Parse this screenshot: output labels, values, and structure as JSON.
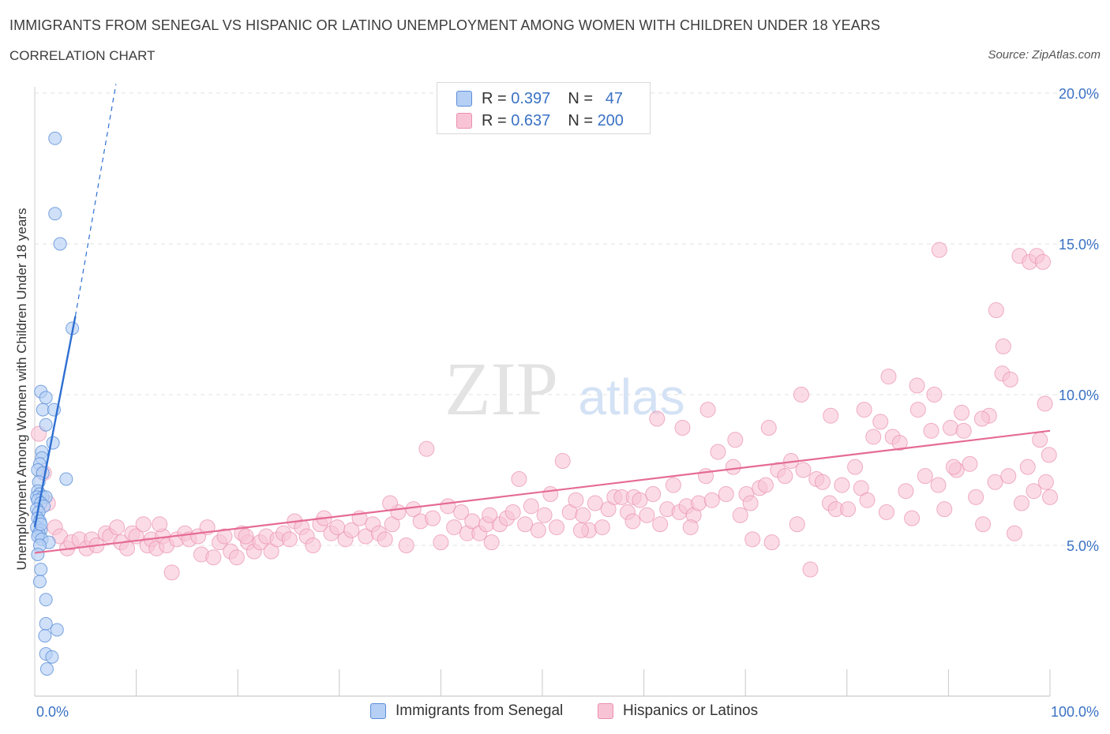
{
  "header": {
    "title": "IMMIGRANTS FROM SENEGAL VS HISPANIC OR LATINO UNEMPLOYMENT AMONG WOMEN WITH CHILDREN UNDER 18 YEARS",
    "subtitle": "CORRELATION CHART",
    "source": "Source: ZipAtlas.com"
  },
  "watermark": {
    "zip": "ZIP",
    "atlas": "atlas"
  },
  "legend": {
    "r_label": "R =",
    "n_label": "N =",
    "series": [
      {
        "name": "Immigrants from Senegal",
        "r": "0.397",
        "n": "47"
      },
      {
        "name": "Hispanics or Latinos",
        "r": "0.637",
        "n": "200"
      }
    ]
  },
  "colors": {
    "senegal_fill": "#b5cff5",
    "senegal_stroke": "#5b8ed8",
    "senegal_line": "#2e6fd1",
    "hispanic_fill": "#f8c4d5",
    "hispanic_stroke": "#ea8fae",
    "hispanic_line": "#e56b96",
    "axis_label": "#3a72c4"
  },
  "chart_data": {
    "type": "scatter",
    "title": "IMMIGRANTS FROM SENEGAL VS HISPANIC OR LATINO UNEMPLOYMENT AMONG WOMEN WITH CHILDREN UNDER 18 YEARS",
    "ylabel": "Unemployment Among Women with Children Under 18 years",
    "xlabel": "",
    "xlim": [
      0,
      100
    ],
    "ylim": [
      0,
      20.5
    ],
    "x_tick_labels": [
      "0.0%",
      "100.0%"
    ],
    "y_ticks": [
      5,
      10,
      15,
      20
    ],
    "y_tick_labels": [
      "5.0%",
      "10.0%",
      "15.0%",
      "20.0%"
    ],
    "grid": "horizontal dashed",
    "legend_position": "top-center",
    "series": [
      {
        "name": "Immigrants from Senegal",
        "r": 0.397,
        "n": 47,
        "trend": {
          "x": [
            0.0,
            4.0
          ],
          "y": [
            5.6,
            12.6
          ],
          "dashed_extension_to": [
            8.0,
            20.3
          ]
        },
        "points": [
          [
            2.0,
            18.5
          ],
          [
            2.0,
            16.0
          ],
          [
            2.5,
            15.0
          ],
          [
            3.7,
            12.2
          ],
          [
            0.6,
            10.1
          ],
          [
            1.1,
            9.9
          ],
          [
            0.8,
            9.5
          ],
          [
            1.9,
            9.5
          ],
          [
            1.1,
            9.0
          ],
          [
            1.8,
            8.4
          ],
          [
            0.7,
            8.1
          ],
          [
            0.7,
            7.9
          ],
          [
            0.5,
            7.7
          ],
          [
            0.3,
            7.5
          ],
          [
            0.8,
            7.4
          ],
          [
            3.1,
            7.2
          ],
          [
            0.4,
            7.1
          ],
          [
            0.3,
            6.8
          ],
          [
            0.5,
            6.7
          ],
          [
            0.2,
            6.6
          ],
          [
            0.8,
            6.6
          ],
          [
            1.1,
            6.6
          ],
          [
            0.3,
            6.5
          ],
          [
            0.6,
            6.4
          ],
          [
            0.9,
            6.3
          ],
          [
            0.2,
            6.2
          ],
          [
            0.4,
            6.1
          ],
          [
            0.3,
            5.9
          ],
          [
            0.5,
            5.8
          ],
          [
            0.2,
            5.6
          ],
          [
            0.6,
            5.5
          ],
          [
            0.4,
            5.4
          ],
          [
            0.3,
            5.3
          ],
          [
            0.7,
            5.2
          ],
          [
            1.4,
            5.1
          ],
          [
            0.5,
            5.0
          ],
          [
            0.3,
            4.7
          ],
          [
            0.6,
            4.2
          ],
          [
            0.5,
            3.8
          ],
          [
            1.1,
            3.2
          ],
          [
            1.1,
            2.4
          ],
          [
            2.2,
            2.2
          ],
          [
            1.0,
            2.0
          ],
          [
            1.1,
            1.4
          ],
          [
            1.7,
            1.3
          ],
          [
            1.2,
            0.9
          ],
          [
            0.6,
            5.7
          ]
        ]
      },
      {
        "name": "Hispanics or Latinos",
        "r": 0.637,
        "n": 200,
        "trend": {
          "x": [
            0.0,
            100.0
          ],
          "y": [
            4.75,
            8.8
          ]
        },
        "points": [
          [
            0.4,
            8.7
          ],
          [
            0.9,
            7.4
          ],
          [
            1.3,
            6.4
          ],
          [
            2.0,
            5.6
          ],
          [
            2.5,
            5.3
          ],
          [
            3.2,
            4.9
          ],
          [
            3.6,
            5.1
          ],
          [
            4.4,
            5.2
          ],
          [
            5.1,
            4.9
          ],
          [
            5.6,
            5.2
          ],
          [
            6.1,
            5.0
          ],
          [
            7.0,
            5.4
          ],
          [
            7.4,
            5.3
          ],
          [
            8.1,
            5.6
          ],
          [
            8.5,
            5.1
          ],
          [
            9.1,
            4.9
          ],
          [
            9.6,
            5.4
          ],
          [
            10.0,
            5.3
          ],
          [
            10.7,
            5.7
          ],
          [
            11.1,
            5.0
          ],
          [
            11.5,
            5.2
          ],
          [
            12.0,
            4.9
          ],
          [
            12.6,
            5.3
          ],
          [
            13.0,
            5.0
          ],
          [
            13.5,
            4.1
          ],
          [
            14.0,
            5.2
          ],
          [
            14.8,
            5.4
          ],
          [
            15.2,
            5.2
          ],
          [
            16.1,
            5.3
          ],
          [
            16.4,
            4.7
          ],
          [
            17.0,
            5.6
          ],
          [
            17.6,
            4.6
          ],
          [
            18.2,
            5.1
          ],
          [
            18.7,
            5.3
          ],
          [
            19.3,
            4.8
          ],
          [
            19.9,
            4.6
          ],
          [
            20.4,
            5.4
          ],
          [
            21.0,
            5.1
          ],
          [
            21.6,
            4.8
          ],
          [
            22.2,
            5.1
          ],
          [
            22.8,
            5.3
          ],
          [
            23.3,
            4.8
          ],
          [
            23.9,
            5.2
          ],
          [
            24.5,
            5.4
          ],
          [
            25.1,
            5.2
          ],
          [
            25.6,
            5.8
          ],
          [
            26.3,
            5.6
          ],
          [
            26.8,
            5.3
          ],
          [
            27.4,
            5.0
          ],
          [
            28.1,
            5.7
          ],
          [
            28.5,
            5.9
          ],
          [
            29.2,
            5.4
          ],
          [
            29.8,
            5.6
          ],
          [
            30.6,
            5.2
          ],
          [
            31.2,
            5.5
          ],
          [
            32.0,
            5.9
          ],
          [
            32.6,
            5.3
          ],
          [
            33.3,
            5.7
          ],
          [
            33.9,
            5.4
          ],
          [
            34.5,
            5.2
          ],
          [
            35.2,
            5.7
          ],
          [
            35.8,
            6.1
          ],
          [
            36.6,
            5.0
          ],
          [
            37.3,
            6.2
          ],
          [
            38.0,
            5.8
          ],
          [
            38.6,
            8.2
          ],
          [
            39.2,
            5.9
          ],
          [
            40.0,
            5.1
          ],
          [
            40.7,
            6.3
          ],
          [
            41.3,
            5.6
          ],
          [
            42.0,
            6.1
          ],
          [
            42.6,
            5.4
          ],
          [
            43.1,
            5.8
          ],
          [
            43.8,
            5.4
          ],
          [
            44.5,
            5.7
          ],
          [
            45.0,
            5.1
          ],
          [
            45.8,
            5.7
          ],
          [
            46.5,
            5.9
          ],
          [
            47.1,
            6.1
          ],
          [
            47.7,
            7.2
          ],
          [
            48.3,
            5.7
          ],
          [
            48.9,
            6.3
          ],
          [
            49.6,
            5.5
          ],
          [
            50.2,
            6.0
          ],
          [
            50.8,
            6.7
          ],
          [
            51.4,
            5.6
          ],
          [
            52.0,
            7.8
          ],
          [
            52.7,
            6.1
          ],
          [
            53.3,
            6.5
          ],
          [
            54.0,
            6.0
          ],
          [
            54.6,
            5.5
          ],
          [
            55.2,
            6.4
          ],
          [
            55.9,
            5.6
          ],
          [
            56.5,
            6.2
          ],
          [
            57.1,
            6.6
          ],
          [
            57.8,
            6.6
          ],
          [
            58.4,
            6.1
          ],
          [
            59.0,
            6.6
          ],
          [
            59.6,
            6.5
          ],
          [
            60.3,
            6.0
          ],
          [
            60.9,
            6.7
          ],
          [
            61.6,
            5.7
          ],
          [
            62.3,
            6.2
          ],
          [
            62.9,
            7.0
          ],
          [
            63.5,
            6.1
          ],
          [
            64.2,
            6.3
          ],
          [
            64.9,
            6.0
          ],
          [
            65.4,
            6.4
          ],
          [
            66.1,
            7.3
          ],
          [
            66.7,
            6.5
          ],
          [
            67.3,
            8.1
          ],
          [
            68.1,
            6.7
          ],
          [
            68.8,
            7.6
          ],
          [
            69.5,
            6.0
          ],
          [
            70.1,
            6.7
          ],
          [
            70.7,
            5.2
          ],
          [
            71.4,
            6.9
          ],
          [
            72.0,
            7.0
          ],
          [
            72.6,
            5.1
          ],
          [
            73.2,
            7.5
          ],
          [
            73.9,
            7.3
          ],
          [
            74.5,
            7.8
          ],
          [
            75.1,
            5.7
          ],
          [
            75.7,
            7.5
          ],
          [
            76.4,
            4.2
          ],
          [
            77.0,
            7.2
          ],
          [
            77.6,
            7.1
          ],
          [
            78.3,
            6.4
          ],
          [
            78.9,
            6.2
          ],
          [
            79.5,
            7.0
          ],
          [
            80.1,
            6.2
          ],
          [
            80.8,
            7.6
          ],
          [
            81.4,
            6.9
          ],
          [
            82.0,
            6.5
          ],
          [
            82.6,
            8.6
          ],
          [
            83.3,
            9.1
          ],
          [
            83.9,
            6.1
          ],
          [
            84.5,
            8.6
          ],
          [
            85.2,
            8.4
          ],
          [
            85.8,
            6.8
          ],
          [
            86.4,
            5.9
          ],
          [
            87.0,
            9.5
          ],
          [
            87.7,
            7.3
          ],
          [
            88.3,
            8.8
          ],
          [
            89.0,
            7.0
          ],
          [
            89.6,
            6.2
          ],
          [
            90.2,
            8.9
          ],
          [
            90.8,
            7.5
          ],
          [
            91.5,
            8.8
          ],
          [
            92.1,
            7.7
          ],
          [
            92.7,
            6.6
          ],
          [
            93.4,
            5.7
          ],
          [
            94.0,
            9.3
          ],
          [
            94.6,
            7.1
          ],
          [
            95.3,
            10.7
          ],
          [
            95.9,
            7.3
          ],
          [
            96.5,
            5.4
          ],
          [
            97.2,
            6.4
          ],
          [
            97.8,
            7.6
          ],
          [
            98.4,
            6.8
          ],
          [
            99.0,
            8.5
          ],
          [
            99.6,
            7.1
          ],
          [
            99.9,
            8.0
          ],
          [
            100.0,
            6.6
          ],
          [
            99.5,
            9.7
          ],
          [
            61.3,
            9.2
          ],
          [
            63.8,
            8.9
          ],
          [
            66.3,
            9.5
          ],
          [
            69.0,
            8.5
          ],
          [
            72.3,
            8.9
          ],
          [
            75.5,
            10.0
          ],
          [
            78.4,
            9.3
          ],
          [
            81.7,
            9.5
          ],
          [
            84.1,
            10.6
          ],
          [
            86.9,
            10.3
          ],
          [
            88.6,
            10.0
          ],
          [
            90.5,
            7.6
          ],
          [
            91.3,
            9.4
          ],
          [
            93.3,
            9.2
          ],
          [
            94.7,
            12.8
          ],
          [
            95.4,
            11.6
          ],
          [
            96.1,
            10.5
          ],
          [
            97.0,
            14.6
          ],
          [
            98.0,
            14.4
          ],
          [
            98.7,
            14.6
          ],
          [
            99.3,
            14.4
          ],
          [
            89.1,
            14.8
          ],
          [
            12.3,
            5.7
          ],
          [
            20.8,
            5.3
          ],
          [
            35.0,
            6.4
          ],
          [
            44.8,
            6.0
          ],
          [
            53.8,
            5.5
          ],
          [
            58.9,
            5.8
          ],
          [
            64.6,
            5.6
          ],
          [
            70.5,
            6.4
          ]
        ]
      }
    ]
  }
}
